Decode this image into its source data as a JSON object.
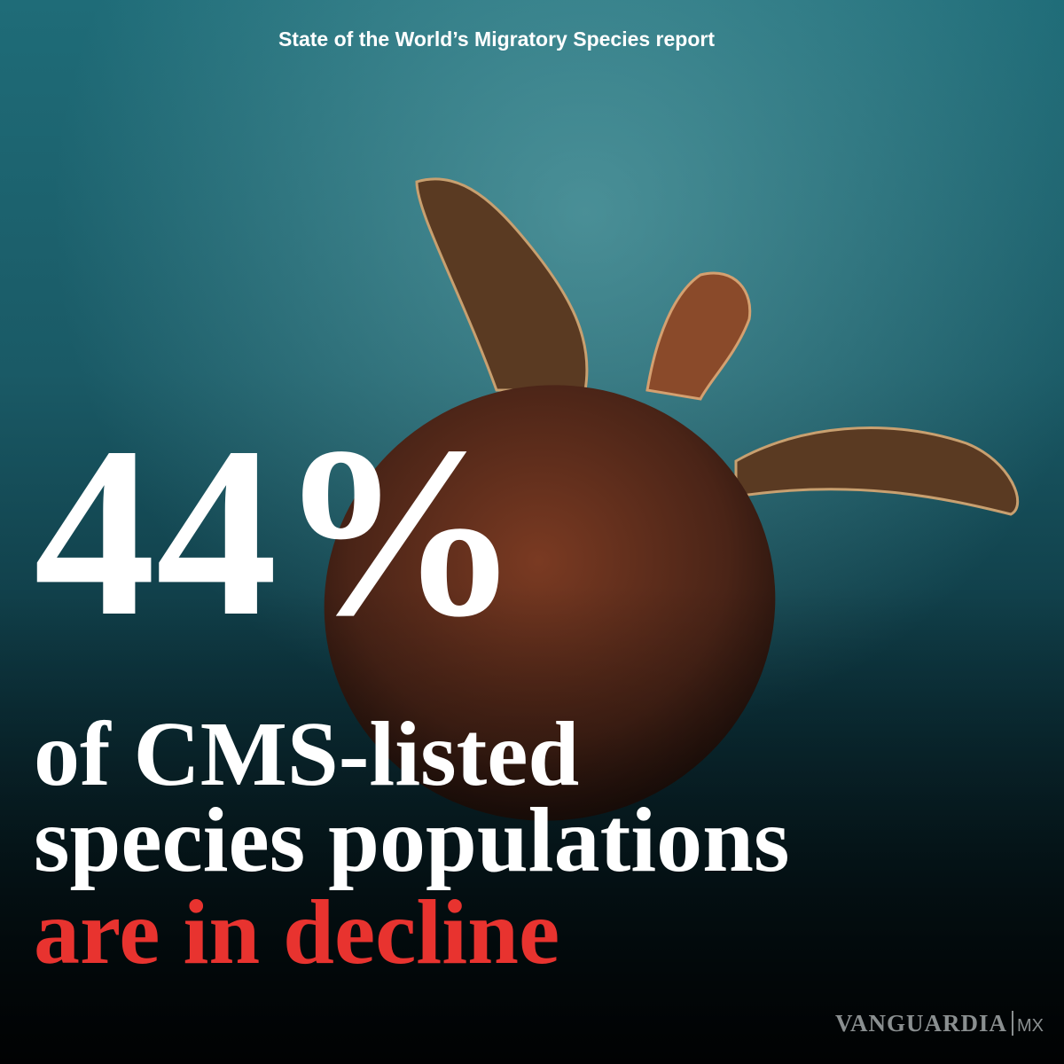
{
  "header": {
    "title": "State of the World’s Migratory Species report"
  },
  "headline": {
    "stat": "44%",
    "lines": [
      "of CMS-listed",
      "species populations"
    ],
    "highlight": "are in decline"
  },
  "brand": {
    "name": "VANGUARDIA",
    "suffix": "MX"
  }
}
